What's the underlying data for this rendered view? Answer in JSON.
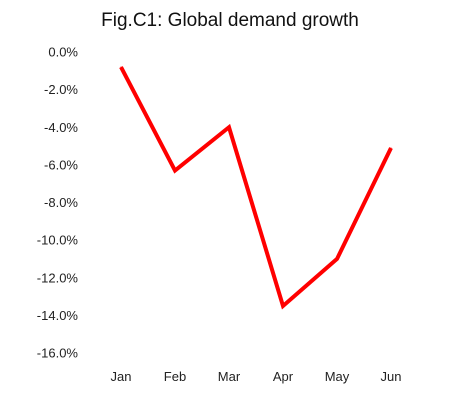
{
  "chart_data": {
    "type": "line",
    "title": "Fig.C1: Global demand growth",
    "xlabel": "",
    "ylabel": "",
    "categories": [
      "Jan",
      "Feb",
      "Mar",
      "Apr",
      "May",
      "Jun"
    ],
    "series": [
      {
        "values": [
          -0.8,
          -6.3,
          -4.0,
          -13.5,
          -11.0,
          -5.1
        ],
        "color": "#ff0000"
      }
    ],
    "ylim": [
      -16.0,
      0.0
    ],
    "yticks": [
      0.0,
      -2.0,
      -4.0,
      -6.0,
      -8.0,
      -10.0,
      -12.0,
      -14.0,
      -16.0
    ],
    "ytick_labels": [
      "0.0%",
      "-2.0%",
      "-4.0%",
      "-6.0%",
      "-8.0%",
      "-10.0%",
      "-12.0%",
      "-14.0%",
      "-16.0%"
    ],
    "grid": false,
    "legend": false
  }
}
